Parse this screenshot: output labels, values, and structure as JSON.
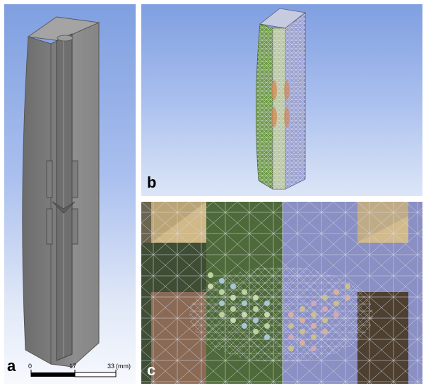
{
  "panels": {
    "a": {
      "letter": "a"
    },
    "b": {
      "letter": "b"
    },
    "c": {
      "letter": "c"
    }
  },
  "scale_bar": {
    "ticks": [
      "0",
      "17",
      "33"
    ],
    "unit": "(mm)"
  },
  "colors": {
    "background_top": "#7f9fe0",
    "background_bottom": "#f7f9fd",
    "model_gray": "#8c8c8c",
    "mesh_green": "#4f6a3a",
    "mesh_blue": "#8a8fc4",
    "mesh_tan": "#c9b07c"
  }
}
